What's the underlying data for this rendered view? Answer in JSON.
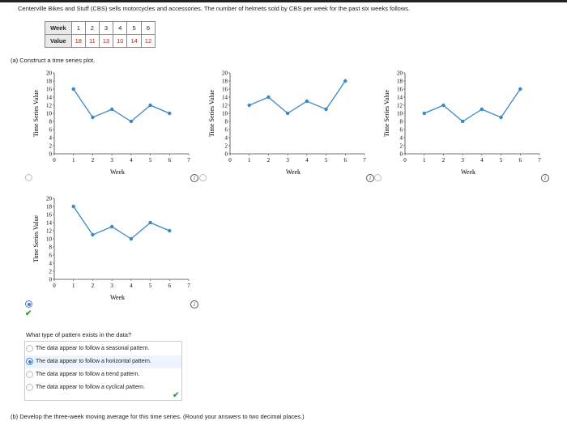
{
  "intro_text": "Centerville Bikes and Stuff (CBS) sells motorcycles and accessories. The number of helmets sold by CBS per week for the past six weeks follows.",
  "table": {
    "week_label": "Week",
    "value_label": "Value",
    "weeks": [
      "1",
      "2",
      "3",
      "4",
      "5",
      "6"
    ],
    "values": [
      "18",
      "11",
      "13",
      "10",
      "14",
      "12"
    ]
  },
  "part_a_label": "(a)  Construct a time series plot.",
  "chart_data": [
    {
      "type": "line",
      "x": [
        1,
        2,
        3,
        4,
        5,
        6
      ],
      "y": [
        16,
        9,
        11,
        8,
        12,
        10
      ],
      "xlabel": "Week",
      "ylabel": "Time Series Value",
      "xlim": [
        0,
        7
      ],
      "ylim": [
        0,
        20
      ],
      "xticks": [
        "0",
        "1",
        "2",
        "3",
        "4",
        "5",
        "6",
        "7"
      ],
      "yticks": [
        "0",
        "2",
        "4",
        "6",
        "8",
        "10",
        "12",
        "14",
        "16",
        "18",
        "20"
      ],
      "color": "#3a87c8",
      "selected": false
    },
    {
      "type": "line",
      "x": [
        1,
        2,
        3,
        4,
        5,
        6
      ],
      "y": [
        12,
        14,
        10,
        13,
        11,
        18
      ],
      "xlabel": "Week",
      "ylabel": "Time Series Value",
      "xlim": [
        0,
        7
      ],
      "ylim": [
        0,
        20
      ],
      "xticks": [
        "0",
        "1",
        "2",
        "3",
        "4",
        "5",
        "6",
        "7"
      ],
      "yticks": [
        "0",
        "2",
        "4",
        "6",
        "8",
        "10",
        "12",
        "14",
        "16",
        "18",
        "20"
      ],
      "color": "#3a87c8",
      "selected": false
    },
    {
      "type": "line",
      "x": [
        1,
        2,
        3,
        4,
        5,
        6
      ],
      "y": [
        10,
        12,
        8,
        11,
        9,
        16
      ],
      "xlabel": "Week",
      "ylabel": "Time Series Value",
      "xlim": [
        0,
        7
      ],
      "ylim": [
        0,
        20
      ],
      "xticks": [
        "0",
        "1",
        "2",
        "3",
        "4",
        "5",
        "6",
        "7"
      ],
      "yticks": [
        "0",
        "2",
        "4",
        "6",
        "8",
        "10",
        "12",
        "14",
        "16",
        "18",
        "20"
      ],
      "color": "#3a87c8",
      "selected": false
    },
    {
      "type": "line",
      "x": [
        1,
        2,
        3,
        4,
        5,
        6
      ],
      "y": [
        18,
        11,
        13,
        10,
        14,
        12
      ],
      "xlabel": "Week",
      "ylabel": "Time Series Value",
      "xlim": [
        0,
        7
      ],
      "ylim": [
        0,
        20
      ],
      "xticks": [
        "0",
        "1",
        "2",
        "3",
        "4",
        "5",
        "6",
        "7"
      ],
      "yticks": [
        "0",
        "2",
        "4",
        "6",
        "8",
        "10",
        "12",
        "14",
        "16",
        "18",
        "20"
      ],
      "color": "#3a87c8",
      "selected": true
    }
  ],
  "info_glyph": "i",
  "check_glyph": "✔",
  "question": "What type of pattern exists in the data?",
  "options": [
    {
      "label": "The data appear to follow a seasonal pattern.",
      "selected": false
    },
    {
      "label": "The data appear to follow a horizontal pattern.",
      "selected": true
    },
    {
      "label": "The data appear to follow a trend pattern.",
      "selected": false
    },
    {
      "label": "The data appear to follow a cyclical pattern.",
      "selected": false
    }
  ],
  "part_b_label": "(b)  Develop the three-week moving average for this time series. (Round your answers to two decimal places.)",
  "colors": {
    "accent": "#3a7bd5",
    "line": "#3a87c8",
    "correct": "#3aa23a",
    "value_red": "#b3261e"
  }
}
